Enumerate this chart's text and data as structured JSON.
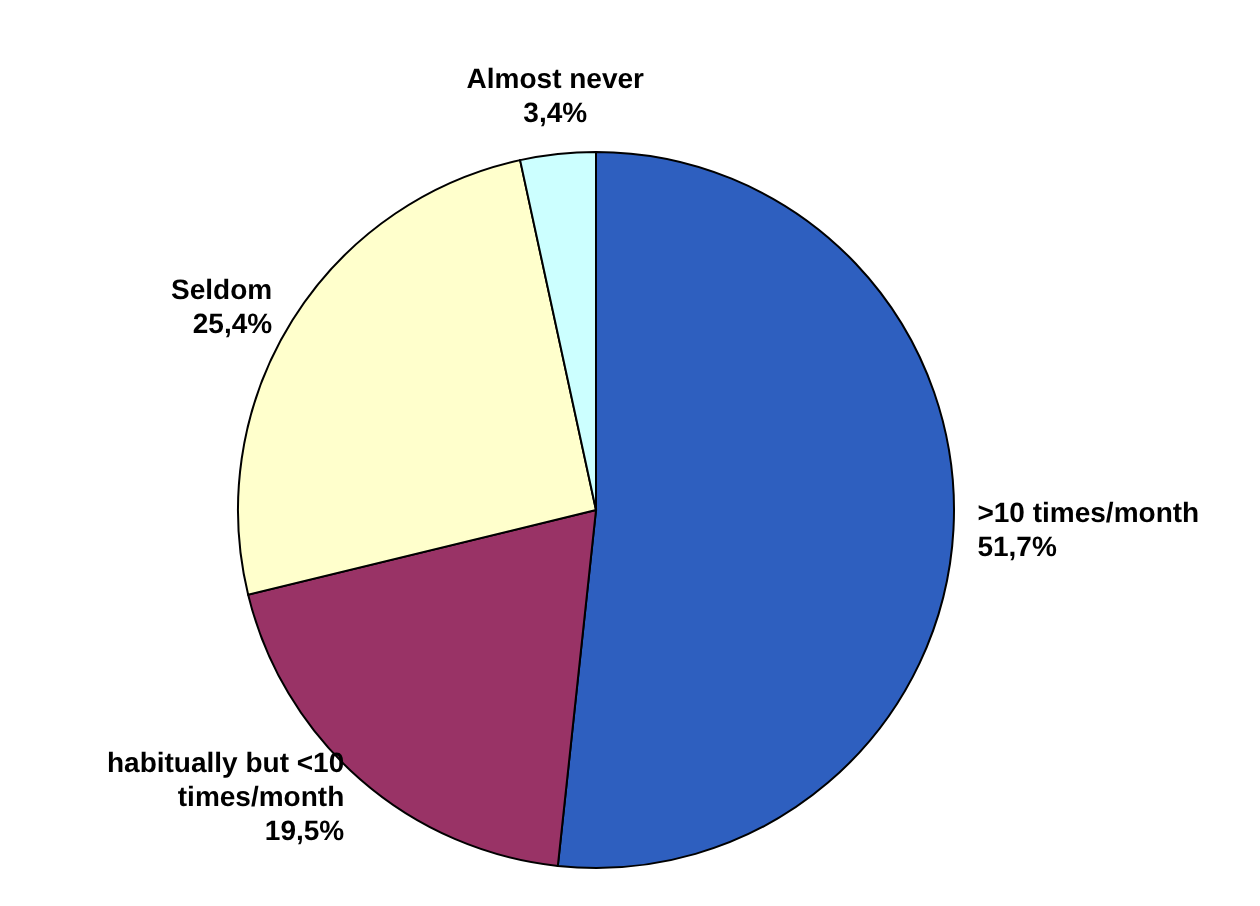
{
  "chart_data": {
    "type": "pie",
    "categories": [
      ">10 times/month",
      "habitually but <10 times/month",
      "Seldom",
      "Almost never"
    ],
    "values": [
      51.7,
      19.5,
      25.4,
      3.4
    ],
    "value_labels": [
      "51,7%",
      "19,5%",
      "25,4%",
      "3,4%"
    ],
    "colors": [
      "#2e5fbf",
      "#993366",
      "#ffffcc",
      "#ccffff"
    ]
  }
}
